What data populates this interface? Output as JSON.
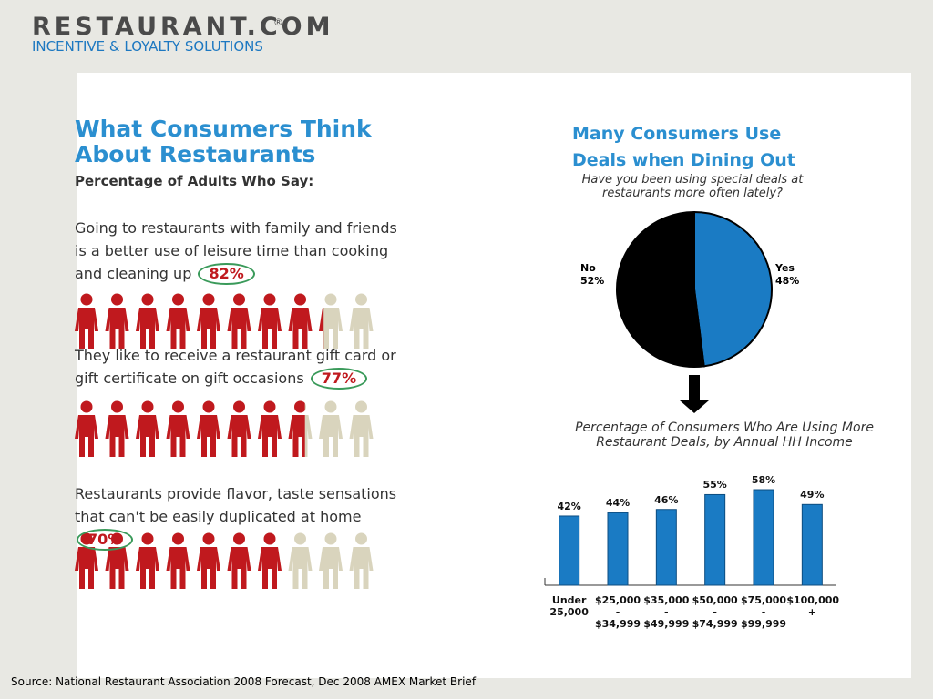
{
  "header": {
    "logo": "RESTAURANT.COM",
    "registered": "®",
    "tagline": "INCENTIVE & LOYALTY SOLUTIONS"
  },
  "infographic": {
    "title": "What Consumers Think About Restaurants",
    "subtitle": "Percentage of Adults Who Say:",
    "items": [
      {
        "text": "Going to restaurants with family and friends is a better use of leisure time than cooking and cleaning up",
        "value": 82,
        "label": "82%"
      },
      {
        "text": "They like to receive a restaurant gift card or gift certificate on gift occasions",
        "value": 77,
        "label": "77%"
      },
      {
        "text": "Restaurants provide flavor, taste sensations that can't be easily duplicated at home",
        "value": 70,
        "label": "70%"
      }
    ]
  },
  "chart_data": [
    {
      "type": "pie",
      "title": "Many Consumers Use Deals when Dining Out",
      "subtitle": "Have you been using special deals at restaurants more often lately?",
      "categories": [
        "Yes",
        "No"
      ],
      "values": [
        48,
        52
      ],
      "value_labels": [
        "48%",
        "52%"
      ],
      "colors": [
        "#1a7bc4",
        "#000000"
      ]
    },
    {
      "type": "bar",
      "title": "Percentage of Consumers Who Are Using More Restaurant Deals, by Annual HH Income",
      "categories": [
        "Under\n25,000",
        "$25,000\n-\n$34,999",
        "$35,000\n-\n$49,999",
        "$50,000\n-\n$74,999",
        "$75,000\n-\n$99,999",
        "$100,000\n+"
      ],
      "values": [
        42,
        44,
        46,
        55,
        58,
        49
      ],
      "value_labels": [
        "42%",
        "44%",
        "46%",
        "55%",
        "58%",
        "49%"
      ],
      "color": "#1a7bc4"
    }
  ],
  "source": "Source:  National Restaurant Association 2008 Forecast, Dec 2008 AMEX Market Brief"
}
